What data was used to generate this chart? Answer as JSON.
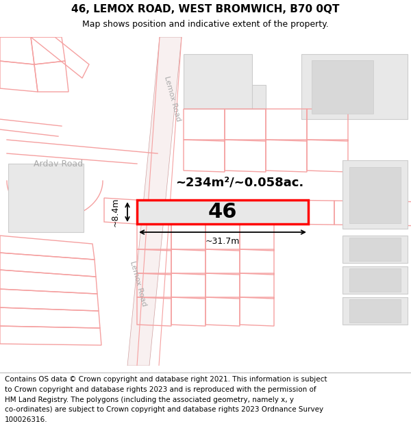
{
  "title": "46, LEMOX ROAD, WEST BROMWICH, B70 0QT",
  "subtitle": "Map shows position and indicative extent of the property.",
  "area_text": "~234m²/~0.058ac.",
  "property_number": "46",
  "width_label": "~31.7m",
  "height_label": "~8.4m",
  "road_label_top": "Lemox Road",
  "road_label_bottom": "Lemox Road",
  "road_label_ardav": "Ardav Road",
  "footer_lines": [
    "Contains OS data © Crown copyright and database right 2021. This information is subject",
    "to Crown copyright and database rights 2023 and is reproduced with the permission of",
    "HM Land Registry. The polygons (including the associated geometry, namely x, y",
    "co-ordinates) are subject to Crown copyright and database rights 2023 Ordnance Survey",
    "100026316."
  ],
  "bg_color": "#ffffff",
  "outline_color": "#f5a0a0",
  "building_fill": "#e8e8e8",
  "building_outline": "#cccccc",
  "property_fill": "#e8e8e8",
  "property_stroke": "#ff0000",
  "dim_color": "#000000",
  "road_text_color": "#aaaaaa",
  "title_fontsize": 11,
  "subtitle_fontsize": 9,
  "footer_fontsize": 7.5,
  "area_fontsize": 13
}
